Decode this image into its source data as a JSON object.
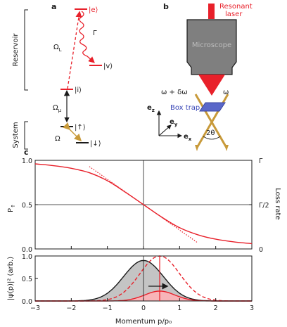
{
  "panels": {
    "a": "a",
    "b": "b",
    "c": "c"
  },
  "panel_a": {
    "state_e": "|e⟩",
    "state_v": "|v⟩",
    "state_i": "|i⟩",
    "state_up": "|↑⟩",
    "state_down": "|↓⟩",
    "gamma": "Γ",
    "omega_L": "Ω",
    "omega_L_sub": "L",
    "omega_mu": "Ω",
    "omega_mu_sub": "μ",
    "omega": "Ω",
    "reservoir": "Reservoir",
    "system": "System"
  },
  "panel_b": {
    "resonant_laser": "Resonant\nlaser",
    "microscope": "Microscope",
    "freq_left": "ω + δω",
    "freq_right": "ω",
    "box_trap": "Box trap",
    "ez": "e",
    "ez_sub": "z",
    "ey": "e",
    "ey_sub": "y",
    "ex": "e",
    "ex_sub": "x",
    "angle": "2θ"
  },
  "colors": {
    "red": "#e8202a",
    "gray_fill": "#c4c4c4",
    "pink_fill": "#f8b4b8",
    "gold": "#c89a3a",
    "microscope": "#7f7f7f",
    "box": "#5a67c9"
  },
  "chart_data": [
    {
      "type": "line",
      "ylabel": "P",
      "ylabel_sub": "↑",
      "right_label": "Loss rate",
      "xlim": [
        -3,
        3
      ],
      "ylim": [
        0,
        1
      ],
      "yticks": [
        "0.0",
        "0.5",
        "1.0"
      ],
      "right_ticks": [
        "0",
        "Γ/2",
        "Γ"
      ],
      "series": [
        {
          "style": "solid",
          "x": [
            -3,
            -2.5,
            -2,
            -1.5,
            -1,
            -0.5,
            0,
            0.5,
            1,
            1.5,
            2,
            2.5,
            3
          ],
          "y": [
            0.96,
            0.94,
            0.91,
            0.86,
            0.77,
            0.64,
            0.5,
            0.36,
            0.24,
            0.16,
            0.11,
            0.08,
            0.06
          ]
        },
        {
          "style": "dotted",
          "x": [
            -1.5,
            1.5
          ],
          "y": [
            0.93,
            0.07
          ]
        }
      ]
    },
    {
      "type": "area",
      "ylabel": "|ψ(p)|² (arb.)",
      "xlabel": "Momentum p/p₀",
      "xlim": [
        -3,
        3
      ],
      "ylim": [
        0,
        1
      ],
      "xticks": [
        "−3",
        "−2",
        "−1",
        "0",
        "1",
        "2",
        "3"
      ],
      "yticks": [
        "0.0",
        "0.5",
        "1.0"
      ],
      "series": [
        {
          "style": "gray-filled",
          "center": 0,
          "sigma": 0.55,
          "peak": 0.9
        },
        {
          "style": "red-dashed",
          "center": 0.45,
          "sigma": 0.55,
          "peak": 1.0
        },
        {
          "style": "red-filled",
          "center": 0.45,
          "sigma": 0.42,
          "peak": 0.22
        }
      ]
    }
  ]
}
